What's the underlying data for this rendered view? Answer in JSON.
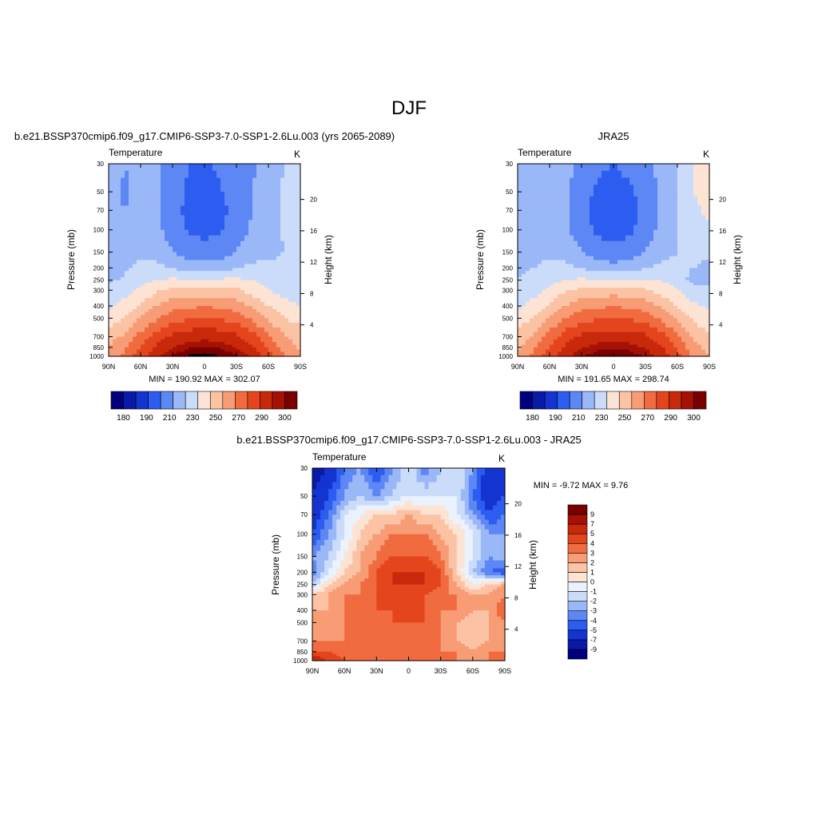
{
  "page_title": "DJF",
  "chart_data": [
    {
      "type": "heatmap",
      "title": "b.e21.BSSP370cmip6.f09_g17.CMIP6-SSP3-7.0-SSP1-2.6Lu.003 (yrs 2065-2089)",
      "subtitle_left": "Temperature",
      "subtitle_right": "K",
      "xlabel": "",
      "ylabel": "Pressure (mb)",
      "ylabel_right": "Height (km)",
      "x_ticks": [
        "90N",
        "60N",
        "30N",
        "0",
        "30S",
        "60S",
        "90S"
      ],
      "y_ticks": [
        "30",
        "50",
        "70",
        "100",
        "150",
        "200",
        "250",
        "300",
        "400",
        "500",
        "700",
        "850",
        "1000"
      ],
      "y_ticks_right": [
        "20",
        "16",
        "12",
        "8",
        "4"
      ],
      "xlim": [
        90,
        -90
      ],
      "ylim": [
        1000,
        30
      ],
      "y_scale": "log",
      "stats": "MIN = 190.92  MAX = 302.07",
      "min": 190.92,
      "max": 302.07,
      "colorbar": {
        "orientation": "horizontal",
        "labels": [
          "180",
          "190",
          "210",
          "230",
          "250",
          "270",
          "290",
          "300"
        ],
        "levels": [
          180,
          185,
          190,
          200,
          210,
          220,
          230,
          240,
          250,
          260,
          270,
          280,
          290,
          295,
          300
        ],
        "colors": [
          "#00007f",
          "#0a1aa8",
          "#1434d2",
          "#2d5cf0",
          "#5c87f4",
          "#9ab7f7",
          "#cbdcfa",
          "#fde3d4",
          "#fbc3a4",
          "#f79c75",
          "#f06b3f",
          "#e4451c",
          "#c9290b",
          "#a51205",
          "#7a0000"
        ]
      },
      "series": [
        {
          "pressure": 30,
          "values": [
            215,
            210,
            212,
            212,
            206,
            200,
            198,
            202,
            207,
            209,
            212,
            220,
            226
          ]
        },
        {
          "pressure": 50,
          "values": [
            212,
            209,
            212,
            212,
            206,
            198,
            196,
            199,
            206,
            210,
            214,
            222,
            226
          ]
        },
        {
          "pressure": 70,
          "values": [
            212,
            210,
            212,
            212,
            204,
            197,
            195,
            197,
            204,
            210,
            214,
            222,
            228
          ]
        },
        {
          "pressure": 100,
          "values": [
            214,
            212,
            214,
            213,
            205,
            199,
            197,
            199,
            205,
            212,
            216,
            221,
            224
          ]
        },
        {
          "pressure": 150,
          "values": [
            217,
            216,
            218,
            217,
            210,
            205,
            203,
            205,
            210,
            216,
            218,
            220,
            222
          ]
        },
        {
          "pressure": 200,
          "values": [
            213,
            218,
            222,
            222,
            220,
            215,
            214,
            215,
            220,
            222,
            222,
            222,
            220
          ]
        },
        {
          "pressure": 250,
          "values": [
            218,
            222,
            226,
            230,
            232,
            231,
            231,
            232,
            232,
            230,
            226,
            222,
            220
          ]
        },
        {
          "pressure": 300,
          "values": [
            222,
            226,
            232,
            238,
            242,
            243,
            244,
            244,
            242,
            236,
            230,
            226,
            224
          ]
        },
        {
          "pressure": 400,
          "values": [
            228,
            234,
            242,
            250,
            256,
            258,
            259,
            258,
            255,
            248,
            240,
            234,
            230
          ]
        },
        {
          "pressure": 500,
          "values": [
            234,
            240,
            250,
            259,
            266,
            269,
            270,
            269,
            265,
            258,
            248,
            240,
            236
          ]
        },
        {
          "pressure": 700,
          "values": [
            246,
            252,
            264,
            274,
            282,
            286,
            287,
            286,
            282,
            274,
            262,
            250,
            246
          ]
        },
        {
          "pressure": 850,
          "values": [
            250,
            258,
            270,
            282,
            290,
            294,
            296,
            294,
            290,
            281,
            268,
            256,
            248
          ]
        },
        {
          "pressure": 1000,
          "values": [
            255,
            262,
            276,
            288,
            296,
            301,
            302,
            300,
            296,
            288,
            274,
            260,
            252
          ]
        }
      ]
    },
    {
      "type": "heatmap",
      "title": "JRA25",
      "subtitle_left": "Temperature",
      "subtitle_right": "K",
      "xlabel": "",
      "ylabel": "Pressure (mb)",
      "ylabel_right": "Height (km)",
      "x_ticks": [
        "90N",
        "60N",
        "30N",
        "0",
        "30S",
        "60S",
        "90S"
      ],
      "y_ticks": [
        "30",
        "50",
        "70",
        "100",
        "150",
        "200",
        "250",
        "300",
        "400",
        "500",
        "700",
        "850",
        "1000"
      ],
      "y_ticks_right": [
        "20",
        "16",
        "12",
        "8",
        "4"
      ],
      "xlim": [
        90,
        -90
      ],
      "ylim": [
        1000,
        30
      ],
      "y_scale": "log",
      "stats": "MIN = 191.65  MAX = 298.74",
      "min": 191.65,
      "max": 298.74,
      "colorbar": {
        "orientation": "horizontal",
        "labels": [
          "180",
          "190",
          "210",
          "230",
          "250",
          "270",
          "290",
          "300"
        ],
        "levels": [
          180,
          185,
          190,
          200,
          210,
          220,
          230,
          240,
          250,
          260,
          270,
          280,
          290,
          295,
          300
        ],
        "colors": [
          "#00007f",
          "#0a1aa8",
          "#1434d2",
          "#2d5cf0",
          "#5c87f4",
          "#9ab7f7",
          "#cbdcfa",
          "#fde3d4",
          "#fbc3a4",
          "#f79c75",
          "#f06b3f",
          "#e4451c",
          "#c9290b",
          "#a51205",
          "#7a0000"
        ]
      },
      "series": [
        {
          "pressure": 30,
          "values": [
            214,
            212,
            214,
            213,
            207,
            202,
            200,
            203,
            208,
            212,
            220,
            230,
            236
          ]
        },
        {
          "pressure": 50,
          "values": [
            212,
            212,
            214,
            212,
            205,
            198,
            196,
            198,
            205,
            212,
            220,
            230,
            234
          ]
        },
        {
          "pressure": 70,
          "values": [
            212,
            212,
            214,
            211,
            203,
            196,
            194,
            196,
            203,
            212,
            220,
            228,
            232
          ]
        },
        {
          "pressure": 100,
          "values": [
            214,
            214,
            216,
            212,
            204,
            198,
            196,
            198,
            204,
            213,
            220,
            226,
            228
          ]
        },
        {
          "pressure": 150,
          "values": [
            217,
            217,
            219,
            217,
            210,
            204,
            202,
            204,
            210,
            217,
            220,
            222,
            222
          ]
        },
        {
          "pressure": 200,
          "values": [
            218,
            220,
            222,
            222,
            220,
            215,
            214,
            215,
            220,
            222,
            222,
            220,
            218
          ]
        },
        {
          "pressure": 250,
          "values": [
            220,
            222,
            226,
            230,
            232,
            231,
            231,
            232,
            231,
            229,
            226,
            216,
            218
          ]
        },
        {
          "pressure": 300,
          "values": [
            222,
            226,
            232,
            238,
            242,
            244,
            245,
            244,
            242,
            236,
            230,
            224,
            222
          ]
        },
        {
          "pressure": 400,
          "values": [
            228,
            234,
            242,
            251,
            256,
            258,
            259,
            258,
            255,
            248,
            240,
            232,
            228
          ]
        },
        {
          "pressure": 500,
          "values": [
            234,
            240,
            250,
            260,
            266,
            269,
            270,
            269,
            265,
            258,
            248,
            238,
            234
          ]
        },
        {
          "pressure": 700,
          "values": [
            244,
            252,
            264,
            275,
            282,
            285,
            286,
            285,
            282,
            274,
            262,
            248,
            242
          ]
        },
        {
          "pressure": 850,
          "values": [
            248,
            258,
            270,
            282,
            289,
            293,
            294,
            293,
            289,
            281,
            268,
            254,
            246
          ]
        },
        {
          "pressure": 1000,
          "values": [
            252,
            262,
            276,
            288,
            295,
            298,
            299,
            298,
            295,
            287,
            273,
            258,
            250
          ]
        }
      ]
    },
    {
      "type": "heatmap",
      "title": "b.e21.BSSP370cmip6.f09_g17.CMIP6-SSP3-7.0-SSP1-2.6Lu.003 - JRA25",
      "subtitle_left": "Temperature",
      "subtitle_right": "K",
      "xlabel": "",
      "ylabel": "Pressure (mb)",
      "ylabel_right": "Height (km)",
      "x_ticks": [
        "90N",
        "60N",
        "30N",
        "0",
        "30S",
        "60S",
        "90S"
      ],
      "y_ticks": [
        "30",
        "50",
        "70",
        "100",
        "150",
        "200",
        "250",
        "300",
        "400",
        "500",
        "700",
        "850",
        "1000"
      ],
      "y_ticks_right": [
        "20",
        "16",
        "12",
        "8",
        "4"
      ],
      "xlim": [
        90,
        -90
      ],
      "ylim": [
        1000,
        30
      ],
      "y_scale": "log",
      "stats": "MIN =  -9.72  MAX =   9.76",
      "min": -9.72,
      "max": 9.76,
      "colorbar": {
        "orientation": "vertical",
        "labels": [
          "9",
          "7",
          "5",
          "4",
          "3",
          "2",
          "1",
          "0",
          "-1",
          "-2",
          "-3",
          "-4",
          "-5",
          "-7",
          "-9"
        ],
        "levels": [
          -9,
          -7,
          -5,
          -4,
          -3,
          -2,
          -1,
          0,
          1,
          2,
          3,
          4,
          5,
          7,
          9
        ],
        "colors": [
          "#00007f",
          "#0a1aa8",
          "#1434d2",
          "#2d5cf0",
          "#5c87f4",
          "#9ab7f7",
          "#cbdcfa",
          "#eaf2fd",
          "#fde3d4",
          "#fbc3a4",
          "#f79c75",
          "#f06b3f",
          "#e4451c",
          "#c9290b",
          "#a51205",
          "#7a0000"
        ]
      },
      "series": [
        {
          "pressure": 30,
          "values": [
            -9,
            -7,
            -4,
            -3,
            -5,
            -3,
            -1,
            -4,
            -2,
            -1,
            -3,
            -6,
            -5
          ]
        },
        {
          "pressure": 50,
          "values": [
            -7,
            -5,
            -3,
            -2,
            -3,
            -2,
            -1,
            -1,
            -1,
            -1,
            -4,
            -6,
            -5
          ]
        },
        {
          "pressure": 70,
          "values": [
            -6,
            -4,
            -1,
            0,
            1,
            1,
            2,
            1,
            1,
            -1,
            -3,
            -5,
            -4
          ]
        },
        {
          "pressure": 100,
          "values": [
            -5,
            -3,
            -1,
            1,
            2,
            3,
            3,
            3,
            2,
            1,
            -1,
            -3,
            -3
          ]
        },
        {
          "pressure": 150,
          "values": [
            -3,
            -2,
            0,
            2,
            3,
            4,
            4,
            4,
            3,
            1,
            -1,
            -3,
            -2
          ]
        },
        {
          "pressure": 200,
          "values": [
            -4,
            -1,
            1,
            2,
            4,
            5,
            5,
            5,
            4,
            1,
            -2,
            -4,
            -5
          ]
        },
        {
          "pressure": 250,
          "values": [
            -2,
            1,
            2,
            3,
            4,
            5,
            5,
            5,
            4,
            2,
            0,
            1,
            2
          ]
        },
        {
          "pressure": 300,
          "values": [
            1,
            2,
            3,
            3,
            4,
            4,
            4,
            4,
            3,
            3,
            2,
            2,
            3
          ]
        },
        {
          "pressure": 400,
          "values": [
            2,
            2,
            3,
            3,
            4,
            4,
            4,
            4,
            3,
            3,
            2,
            2,
            4
          ]
        },
        {
          "pressure": 500,
          "values": [
            2,
            2,
            3,
            3,
            3,
            4,
            4,
            4,
            3,
            2,
            1,
            2,
            3
          ]
        },
        {
          "pressure": 700,
          "values": [
            3,
            3,
            3,
            3,
            3,
            3,
            3,
            3,
            3,
            2,
            1,
            2,
            3
          ]
        },
        {
          "pressure": 850,
          "values": [
            4,
            4,
            3,
            3,
            3,
            3,
            3,
            3,
            3,
            3,
            2,
            3,
            3
          ]
        },
        {
          "pressure": 1000,
          "values": [
            6,
            5,
            4,
            3,
            3,
            3,
            3,
            3,
            3,
            3,
            3,
            3,
            3
          ]
        }
      ]
    }
  ]
}
